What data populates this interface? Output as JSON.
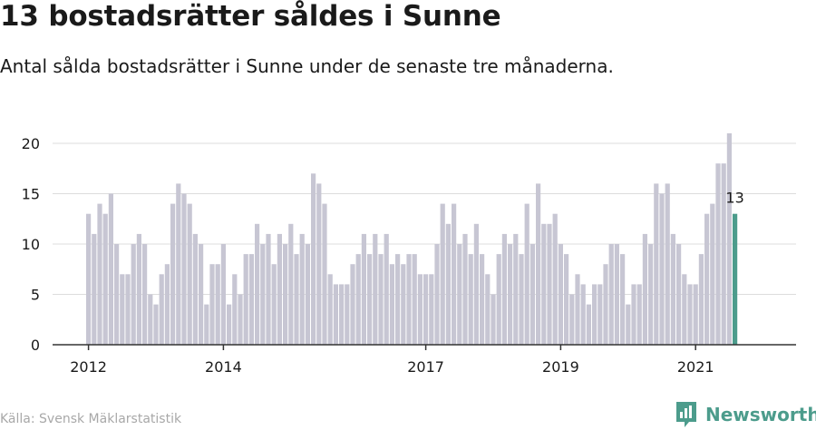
{
  "title": "13 bostadsrätter såldes i Sunne",
  "subtitle": "Antal sålda bostadsrätter i Sunne under de senaste tre månaderna.",
  "source": "Källa: Svensk Mäklarstatistik",
  "brand": {
    "name": "Newsworthy",
    "icon": "newsworthy-logo-icon"
  },
  "colors": {
    "bar": "#c7c6d3",
    "highlight": "#4c9c8c",
    "grid": "#dddddd",
    "axis": "#333333",
    "text": "#1a1a1a"
  },
  "chart_data": {
    "type": "bar",
    "start": "2012-01",
    "values": [
      13,
      11,
      14,
      13,
      15,
      10,
      7,
      7,
      10,
      11,
      10,
      5,
      4,
      7,
      8,
      14,
      16,
      15,
      14,
      11,
      10,
      4,
      8,
      8,
      10,
      4,
      7,
      5,
      9,
      9,
      12,
      10,
      11,
      8,
      11,
      10,
      12,
      9,
      11,
      10,
      17,
      16,
      14,
      7,
      6,
      6,
      6,
      8,
      9,
      11,
      9,
      11,
      9,
      11,
      8,
      9,
      8,
      9,
      9,
      7,
      7,
      7,
      10,
      14,
      12,
      14,
      10,
      11,
      9,
      12,
      9,
      7,
      5,
      9,
      11,
      10,
      11,
      9,
      14,
      10,
      16,
      12,
      12,
      13,
      10,
      9,
      5,
      7,
      6,
      4,
      6,
      6,
      8,
      10,
      10,
      9,
      4,
      6,
      6,
      11,
      10,
      16,
      15,
      16,
      11,
      10,
      7,
      6,
      6,
      9,
      13,
      14,
      18,
      18,
      21,
      13
    ],
    "highlight_label": "13",
    "ylim": [
      0,
      22
    ],
    "yticks": [
      0,
      5,
      10,
      15,
      20
    ],
    "xticks": [
      {
        "label": "2012",
        "index": 0
      },
      {
        "label": "2014",
        "index": 24
      },
      {
        "label": "2017",
        "index": 60
      },
      {
        "label": "2019",
        "index": 84
      },
      {
        "label": "2021",
        "index": 108
      }
    ],
    "grid": true,
    "xlabel": "",
    "ylabel": ""
  }
}
